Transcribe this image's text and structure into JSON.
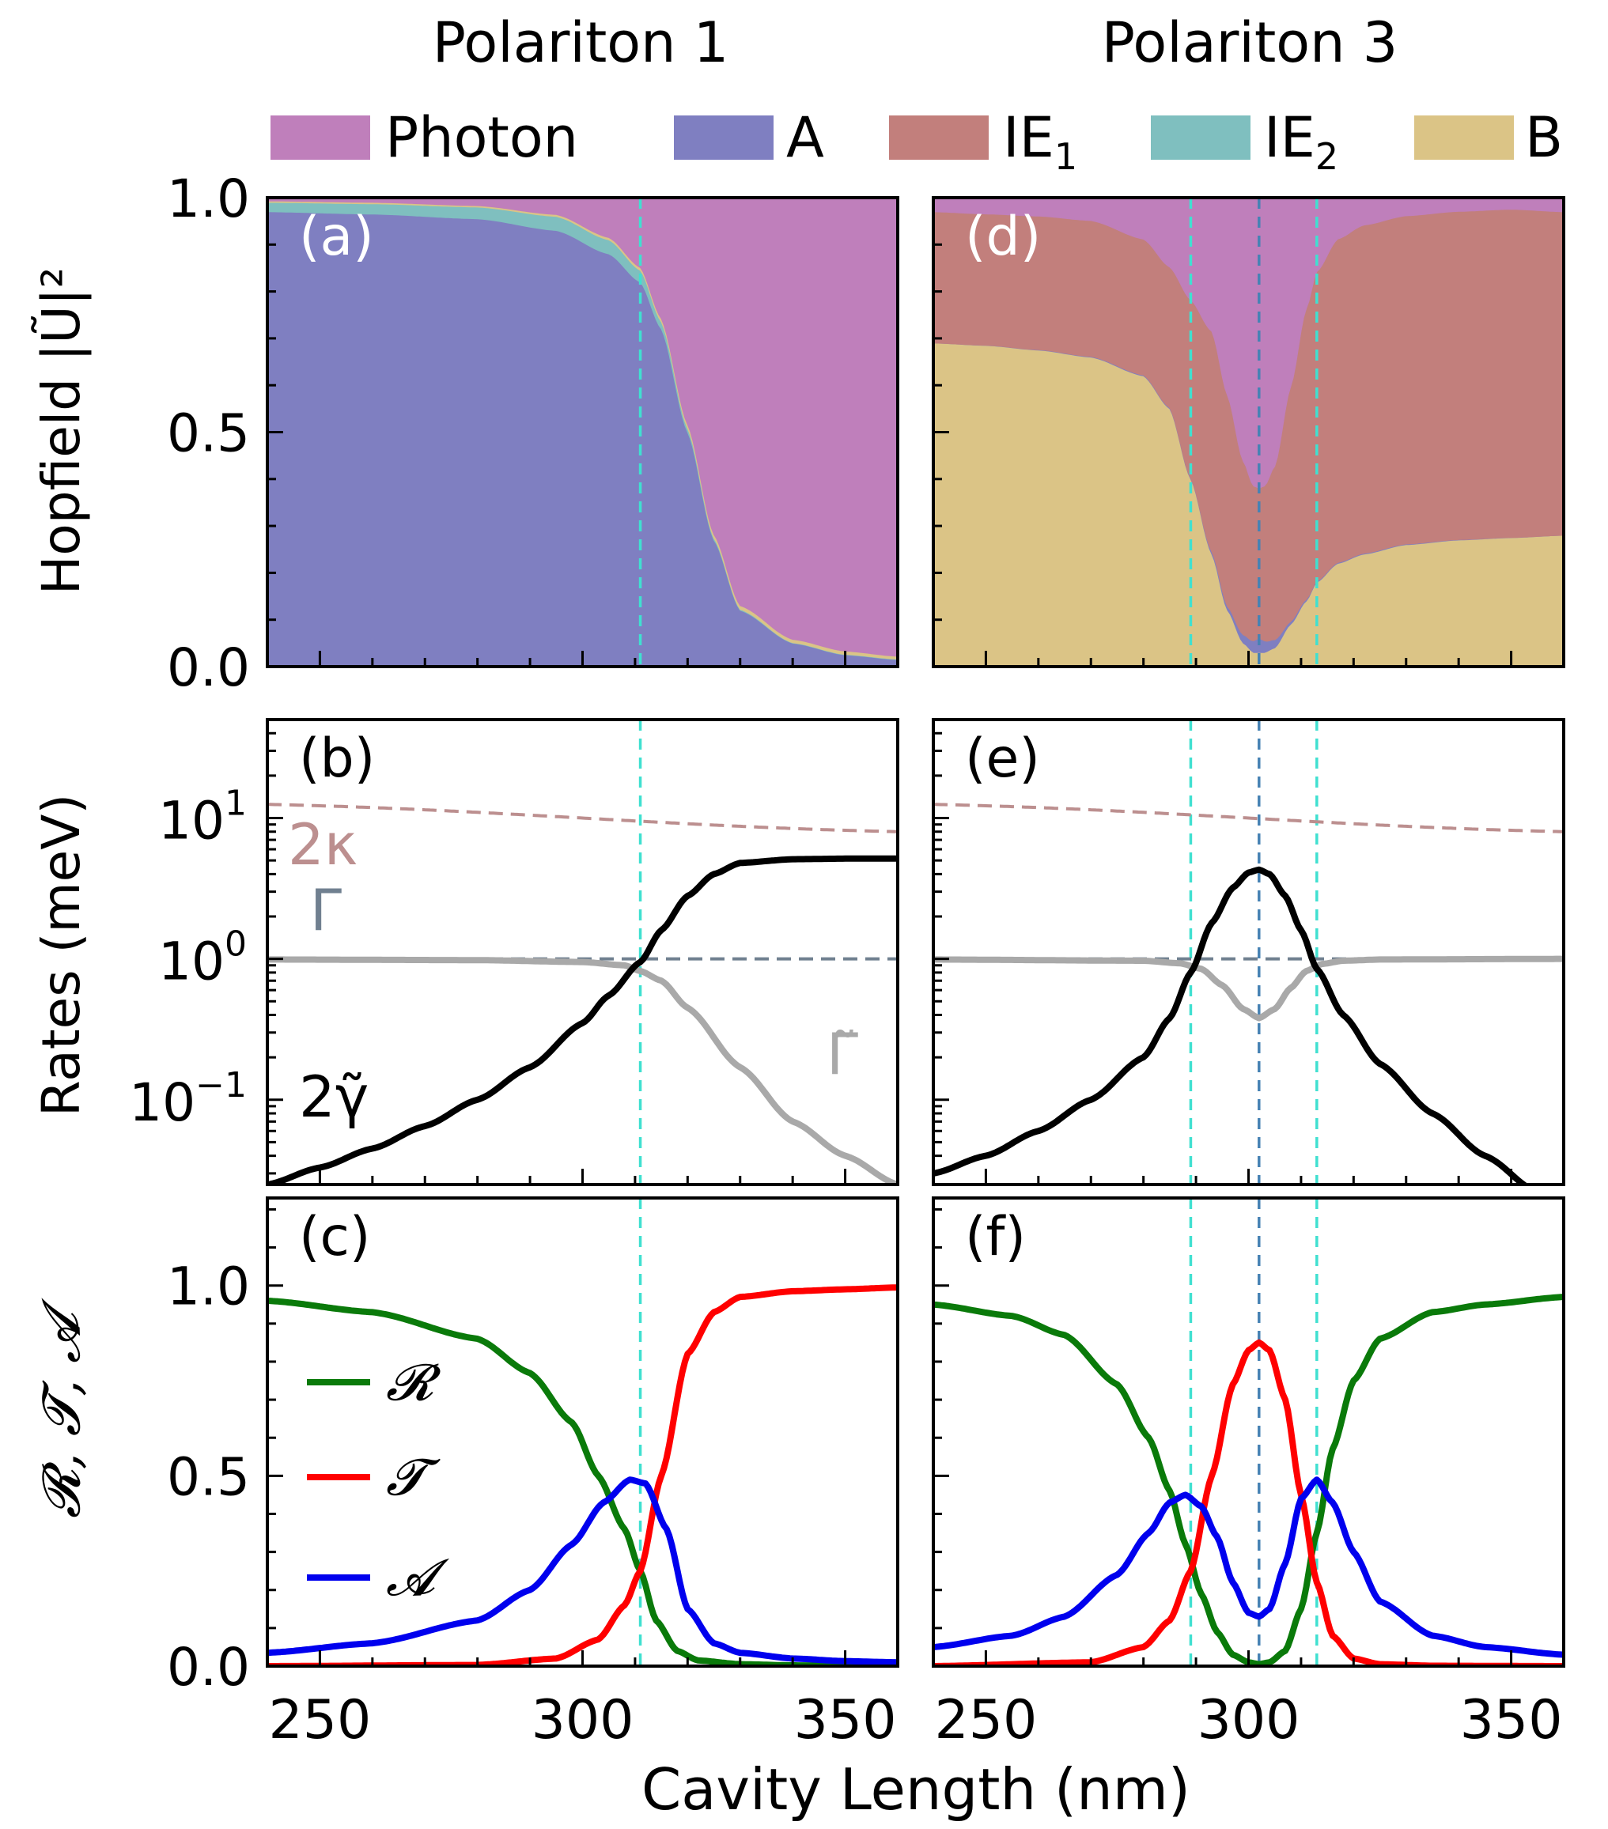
{
  "figure": {
    "column_titles": [
      "Polariton 1",
      "Polariton 3"
    ],
    "xlabel": "Cavity Length (nm)",
    "xlim": [
      240,
      360
    ],
    "xticks": [
      250,
      300,
      350
    ]
  },
  "legend": {
    "items": [
      {
        "label": "Photon",
        "color": "#bf7fbb"
      },
      {
        "label": "A",
        "color": "#7f7fc1"
      },
      {
        "label": "IE",
        "sub": "1",
        "color": "#c27f7c"
      },
      {
        "label": "IE",
        "sub": "2",
        "color": "#7fbfbf"
      },
      {
        "label": "B",
        "color": "#dbc486"
      }
    ]
  },
  "rows": {
    "hopfield": {
      "ylabel": "Hopfield |Ũ|²",
      "yticks": [
        "0.0",
        "0.5",
        "1.0"
      ]
    },
    "rates": {
      "ylabel": "Rates (meV)",
      "yticks": [
        {
          "base": "10",
          "exp": "−1"
        },
        {
          "base": "10",
          "exp": "0"
        },
        {
          "base": "10",
          "exp": "1"
        }
      ]
    },
    "rta": {
      "ylabel": "𝓡, 𝓣, 𝓐",
      "yticks": [
        "0.0",
        "0.5",
        "1.0"
      ]
    }
  },
  "panel_letters": [
    "(a)",
    "(b)",
    "(c)",
    "(d)",
    "(e)",
    "(f)"
  ],
  "annotations": {
    "kappa": "2κ",
    "gamma": "Γ",
    "gamma_tilde": "Γ̃",
    "gamma_small": "2γ̃"
  },
  "rta_legend": [
    "𝓡",
    "𝓣",
    "𝓐"
  ],
  "colors": {
    "photon": "#bf7fbb",
    "A": "#7f7fc1",
    "IE1": "#c27f7c",
    "IE2": "#7fbfbf",
    "B": "#dbc486",
    "R": "#0a7a0a",
    "T": "#ff0000",
    "Abs": "#0000ee",
    "kappa": "#bc8f8f",
    "Gamma": "#708090",
    "GammaTilde": "#a9a9a9",
    "gamma": "#000000",
    "vline_cyan": "#40e0d0",
    "vline_blue": "#4682b4"
  },
  "chart_data": [
    {
      "panel": "(a)",
      "type": "area",
      "stacked": true,
      "xlabel": "Cavity Length (nm)",
      "ylabel": "Hopfield |Ũ|²",
      "xlim": [
        240,
        360
      ],
      "ylim": [
        0,
        1
      ],
      "vlines": [
        {
          "x": 311,
          "color": "cyan"
        }
      ],
      "series": [
        {
          "name": "A",
          "x": [
            240,
            260,
            280,
            295,
            305,
            311,
            315,
            320,
            325,
            330,
            340,
            350,
            360
          ],
          "values": [
            0.97,
            0.965,
            0.955,
            0.93,
            0.88,
            0.82,
            0.72,
            0.5,
            0.27,
            0.12,
            0.05,
            0.025,
            0.015
          ]
        },
        {
          "name": "IE2",
          "x": [
            240,
            260,
            280,
            295,
            305,
            311,
            315,
            320,
            325,
            330,
            340,
            350,
            360
          ],
          "values": [
            0.02,
            0.022,
            0.025,
            0.03,
            0.03,
            0.025,
            0.015,
            0.008,
            0.004,
            0.002,
            0.001,
            0.001,
            0.001
          ]
        },
        {
          "name": "B",
          "x": [
            240,
            260,
            280,
            295,
            305,
            311,
            315,
            320,
            325,
            330,
            340,
            350,
            360
          ],
          "values": [
            0.003,
            0.003,
            0.003,
            0.004,
            0.005,
            0.006,
            0.007,
            0.008,
            0.008,
            0.008,
            0.007,
            0.007,
            0.006
          ]
        },
        {
          "name": "Photon",
          "fill_to": 1
        }
      ]
    },
    {
      "panel": "(b)",
      "type": "line",
      "yscale": "log",
      "xlabel": "Cavity Length (nm)",
      "ylabel": "Rates (meV)",
      "xlim": [
        240,
        360
      ],
      "ylim": [
        0.025,
        50
      ],
      "vlines": [
        {
          "x": 311,
          "color": "cyan"
        }
      ],
      "series": [
        {
          "name": "2κ",
          "x": [
            240,
            360
          ],
          "values": [
            12.5,
            8.0
          ]
        },
        {
          "name": "Γ",
          "x": [
            240,
            360
          ],
          "values": [
            1.0,
            1.0
          ]
        },
        {
          "name": "Γ̃",
          "x": [
            240,
            280,
            300,
            308,
            311,
            315,
            320,
            330,
            340,
            350,
            360
          ],
          "values": [
            0.99,
            0.98,
            0.95,
            0.9,
            0.82,
            0.7,
            0.45,
            0.17,
            0.07,
            0.04,
            0.025
          ]
        },
        {
          "name": "2γ̃",
          "x": [
            240,
            250,
            260,
            270,
            280,
            290,
            300,
            305,
            311,
            315,
            320,
            325,
            330,
            340,
            350,
            360
          ],
          "values": [
            0.025,
            0.033,
            0.045,
            0.065,
            0.1,
            0.17,
            0.35,
            0.55,
            0.95,
            1.6,
            2.8,
            4.0,
            4.8,
            5.1,
            5.15,
            5.15
          ]
        }
      ]
    },
    {
      "panel": "(c)",
      "type": "line",
      "xlabel": "Cavity Length (nm)",
      "ylabel": "𝓡, 𝓣, 𝓐",
      "xlim": [
        240,
        360
      ],
      "ylim": [
        0,
        1.23
      ],
      "vlines": [
        {
          "x": 311,
          "color": "cyan"
        }
      ],
      "series": [
        {
          "name": "𝓡",
          "x": [
            240,
            260,
            280,
            290,
            298,
            303,
            308,
            311,
            314,
            318,
            322,
            330,
            340,
            360
          ],
          "values": [
            0.96,
            0.93,
            0.86,
            0.77,
            0.64,
            0.5,
            0.36,
            0.25,
            0.12,
            0.04,
            0.015,
            0.005,
            0.002,
            0.001
          ]
        },
        {
          "name": "𝓣",
          "x": [
            240,
            280,
            295,
            303,
            308,
            311,
            315,
            320,
            325,
            330,
            340,
            350,
            360
          ],
          "values": [
            0.0,
            0.003,
            0.02,
            0.07,
            0.16,
            0.25,
            0.5,
            0.82,
            0.93,
            0.97,
            0.985,
            0.99,
            0.995
          ]
        },
        {
          "name": "𝓐",
          "x": [
            240,
            260,
            280,
            290,
            298,
            304,
            309,
            312,
            316,
            320,
            325,
            330,
            340,
            350,
            360
          ],
          "values": [
            0.035,
            0.06,
            0.12,
            0.2,
            0.32,
            0.43,
            0.49,
            0.48,
            0.36,
            0.15,
            0.06,
            0.035,
            0.02,
            0.013,
            0.01
          ]
        }
      ]
    },
    {
      "panel": "(d)",
      "type": "area",
      "stacked": true,
      "xlabel": "Cavity Length (nm)",
      "ylabel": "",
      "xlim": [
        240,
        360
      ],
      "ylim": [
        0,
        1
      ],
      "vlines": [
        {
          "x": 289,
          "color": "cyan"
        },
        {
          "x": 302,
          "color": "blue"
        },
        {
          "x": 313,
          "color": "cyan"
        }
      ],
      "series": [
        {
          "name": "B",
          "x": [
            240,
            250,
            260,
            270,
            280,
            285,
            289,
            293,
            296,
            299,
            301,
            303,
            305,
            308,
            311,
            313,
            317,
            322,
            330,
            340,
            350,
            360
          ],
          "values": [
            0.69,
            0.685,
            0.675,
            0.66,
            0.62,
            0.55,
            0.4,
            0.24,
            0.12,
            0.05,
            0.03,
            0.03,
            0.04,
            0.09,
            0.14,
            0.18,
            0.22,
            0.24,
            0.26,
            0.27,
            0.275,
            0.28
          ]
        },
        {
          "name": "A",
          "x": [
            240,
            290,
            296,
            300,
            302,
            304,
            308,
            313,
            360
          ],
          "values": [
            0.0,
            0.002,
            0.008,
            0.02,
            0.03,
            0.02,
            0.006,
            0.002,
            0.0
          ]
        },
        {
          "name": "IE1",
          "x": [
            240,
            250,
            260,
            270,
            280,
            285,
            289,
            293,
            296,
            299,
            301,
            302,
            303,
            305,
            308,
            311,
            313,
            317,
            322,
            330,
            340,
            350,
            360
          ],
          "values": [
            0.28,
            0.28,
            0.285,
            0.29,
            0.29,
            0.3,
            0.38,
            0.47,
            0.45,
            0.37,
            0.33,
            0.32,
            0.33,
            0.37,
            0.5,
            0.62,
            0.66,
            0.69,
            0.7,
            0.7,
            0.7,
            0.7,
            0.69
          ]
        },
        {
          "name": "Photon",
          "fill_to": 1
        }
      ]
    },
    {
      "panel": "(e)",
      "type": "line",
      "yscale": "log",
      "xlabel": "Cavity Length (nm)",
      "ylabel": "",
      "xlim": [
        240,
        360
      ],
      "ylim": [
        0.025,
        50
      ],
      "vlines": [
        {
          "x": 289,
          "color": "cyan"
        },
        {
          "x": 302,
          "color": "blue"
        },
        {
          "x": 313,
          "color": "cyan"
        }
      ],
      "series": [
        {
          "name": "2κ",
          "x": [
            240,
            360
          ],
          "values": [
            12.5,
            8.0
          ]
        },
        {
          "name": "Γ",
          "x": [
            240,
            360
          ],
          "values": [
            1.0,
            1.0
          ]
        },
        {
          "name": "Γ̃",
          "x": [
            240,
            280,
            287,
            291,
            295,
            299,
            302,
            305,
            308,
            311,
            314,
            318,
            325,
            360
          ],
          "values": [
            0.99,
            0.97,
            0.93,
            0.85,
            0.65,
            0.44,
            0.38,
            0.44,
            0.62,
            0.82,
            0.92,
            0.97,
            0.99,
            1.0
          ]
        },
        {
          "name": "2γ̃",
          "x": [
            240,
            250,
            260,
            270,
            280,
            285,
            289,
            293,
            297,
            300,
            302,
            304,
            307,
            310,
            313,
            318,
            325,
            335,
            345,
            355,
            360
          ],
          "values": [
            0.03,
            0.04,
            0.06,
            0.1,
            0.2,
            0.38,
            0.8,
            1.8,
            3.2,
            4.1,
            4.3,
            4.0,
            2.8,
            1.6,
            0.85,
            0.4,
            0.18,
            0.08,
            0.04,
            0.022,
            0.017
          ]
        }
      ]
    },
    {
      "panel": "(f)",
      "type": "line",
      "xlabel": "Cavity Length (nm)",
      "ylabel": "",
      "xlim": [
        240,
        360
      ],
      "ylim": [
        0,
        1.23
      ],
      "vlines": [
        {
          "x": 289,
          "color": "cyan"
        },
        {
          "x": 302,
          "color": "blue"
        },
        {
          "x": 313,
          "color": "cyan"
        }
      ],
      "series": [
        {
          "name": "𝓡",
          "x": [
            240,
            255,
            265,
            275,
            281,
            285,
            288,
            291,
            294,
            297,
            300,
            302,
            304,
            307,
            310,
            313,
            316,
            320,
            325,
            335,
            345,
            360
          ],
          "values": [
            0.95,
            0.92,
            0.87,
            0.74,
            0.6,
            0.46,
            0.32,
            0.19,
            0.09,
            0.03,
            0.01,
            0.005,
            0.01,
            0.04,
            0.15,
            0.35,
            0.57,
            0.75,
            0.86,
            0.93,
            0.95,
            0.97
          ]
        },
        {
          "name": "𝓣",
          "x": [
            240,
            270,
            280,
            285,
            289,
            293,
            297,
            300,
            302,
            304,
            307,
            310,
            313,
            316,
            320,
            325,
            335,
            360
          ],
          "values": [
            0.0,
            0.01,
            0.05,
            0.12,
            0.25,
            0.5,
            0.74,
            0.83,
            0.85,
            0.83,
            0.7,
            0.45,
            0.22,
            0.08,
            0.02,
            0.005,
            0.001,
            0.0
          ]
        },
        {
          "name": "𝓐",
          "x": [
            240,
            255,
            265,
            275,
            281,
            285,
            288,
            291,
            294,
            297,
            300,
            302,
            304,
            307,
            310,
            313,
            316,
            320,
            325,
            335,
            345,
            360
          ],
          "values": [
            0.05,
            0.08,
            0.13,
            0.24,
            0.35,
            0.43,
            0.45,
            0.42,
            0.34,
            0.22,
            0.14,
            0.13,
            0.15,
            0.27,
            0.44,
            0.49,
            0.43,
            0.3,
            0.17,
            0.08,
            0.05,
            0.03
          ]
        }
      ]
    }
  ]
}
